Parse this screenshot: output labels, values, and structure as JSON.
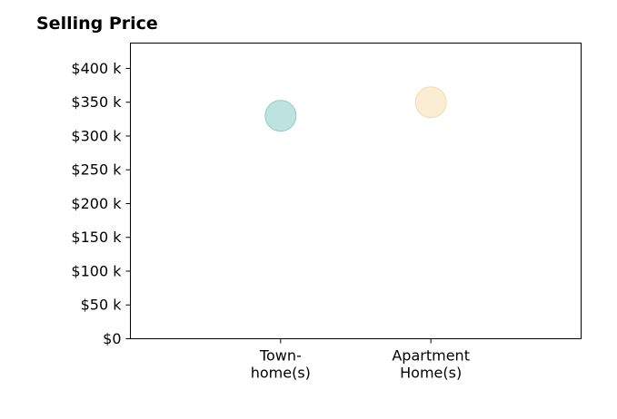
{
  "chart_data": {
    "type": "scatter",
    "title": "Selling Price",
    "xlabel": "",
    "ylabel": "",
    "categories": [
      [
        "Town-",
        "home(s)"
      ],
      [
        "Apartment",
        "Home(s)"
      ]
    ],
    "values": [
      330000,
      350000
    ],
    "point_colors": [
      "#a8dad4",
      "#f8e7c4"
    ],
    "point_strokes": [
      "#8fcdc6",
      "#f0dcb4"
    ],
    "ylim": [
      0,
      437500
    ],
    "yticks": [
      0,
      50000,
      100000,
      150000,
      200000,
      250000,
      300000,
      350000,
      400000
    ],
    "ytick_labels": [
      "$0",
      "$50 k",
      "$100 k",
      "$150 k",
      "$200 k",
      "$250 k",
      "$300 k",
      "$350 k",
      "$400 k"
    ],
    "xlim": [
      -1,
      2
    ],
    "grid": false,
    "legend": "none"
  }
}
